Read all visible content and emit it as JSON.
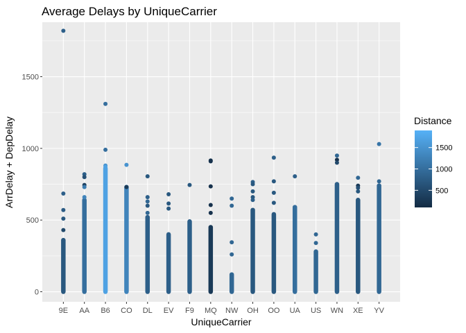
{
  "chart_data": {
    "type": "scatter",
    "title": "Average Delays by UniqueCarrier",
    "xlabel": "UniqueCarrier",
    "ylabel": "ArrDelay + DepDelay",
    "categories": [
      "9E",
      "AA",
      "B6",
      "CO",
      "DL",
      "EV",
      "F9",
      "MQ",
      "NW",
      "OH",
      "OO",
      "UA",
      "US",
      "WN",
      "XE",
      "YV"
    ],
    "ylim": [
      -70,
      1880
    ],
    "yticks": [
      0,
      500,
      1000,
      1500
    ],
    "ytick_labels": [
      "0",
      "500",
      "1000",
      "1500"
    ],
    "grid": true,
    "legend": {
      "title": "Distance",
      "placement": "right",
      "range": [
        100,
        1900
      ],
      "ticks": [
        500,
        1000,
        1500
      ],
      "tick_labels": [
        "500",
        "1000",
        "1500"
      ],
      "color_low": "#132b43",
      "color_high": "#56b1f7"
    },
    "series": [
      {
        "category": "9E",
        "column_max": 360,
        "column_distance": 700,
        "points": [
          [
            1820,
            800
          ],
          [
            685,
            800
          ],
          [
            570,
            750
          ],
          [
            510,
            700
          ],
          [
            430,
            500
          ]
        ]
      },
      {
        "category": "AA",
        "column_max": 640,
        "column_distance": 1000,
        "points": [
          [
            820,
            800
          ],
          [
            800,
            600
          ],
          [
            745,
            400
          ],
          [
            730,
            1200
          ],
          [
            660,
            1300
          ]
        ]
      },
      {
        "category": "B6",
        "column_max": 860,
        "column_distance": 1700,
        "points": [
          [
            1310,
            1000
          ],
          [
            990,
            1000
          ],
          [
            880,
            1500
          ],
          [
            870,
            1700
          ]
        ]
      },
      {
        "category": "CO",
        "column_max": 730,
        "column_distance": 1300,
        "points": [
          [
            885,
            1500
          ],
          [
            730,
            300
          ]
        ]
      },
      {
        "category": "DL",
        "column_max": 520,
        "column_distance": 800,
        "points": [
          [
            805,
            700
          ],
          [
            660,
            800
          ],
          [
            630,
            900
          ],
          [
            600,
            700
          ],
          [
            550,
            900
          ]
        ]
      },
      {
        "category": "EV",
        "column_max": 400,
        "column_distance": 800,
        "points": [
          [
            680,
            700
          ],
          [
            615,
            700
          ],
          [
            580,
            700
          ]
        ]
      },
      {
        "category": "F9",
        "column_max": 490,
        "column_distance": 800,
        "points": [
          [
            745,
            700
          ]
        ]
      },
      {
        "category": "MQ",
        "column_max": 450,
        "column_distance": 300,
        "points": [
          [
            915,
            200
          ],
          [
            910,
            200
          ],
          [
            735,
            200
          ],
          [
            605,
            200
          ],
          [
            550,
            200
          ]
        ]
      },
      {
        "category": "NW",
        "column_max": 120,
        "column_distance": 900,
        "points": [
          [
            650,
            900
          ],
          [
            600,
            900
          ],
          [
            345,
            900
          ],
          [
            260,
            900
          ]
        ]
      },
      {
        "category": "OH",
        "column_max": 570,
        "column_distance": 700,
        "points": [
          [
            765,
            800
          ],
          [
            750,
            700
          ],
          [
            700,
            700
          ],
          [
            660,
            700
          ],
          [
            640,
            800
          ]
        ]
      },
      {
        "category": "OO",
        "column_max": 540,
        "column_distance": 700,
        "points": [
          [
            935,
            800
          ],
          [
            770,
            700
          ],
          [
            690,
            700
          ],
          [
            620,
            700
          ]
        ]
      },
      {
        "category": "UA",
        "column_max": 590,
        "column_distance": 1000,
        "points": [
          [
            805,
            800
          ]
        ]
      },
      {
        "category": "US",
        "column_max": 280,
        "column_distance": 900,
        "points": [
          [
            400,
            900
          ],
          [
            340,
            900
          ]
        ]
      },
      {
        "category": "WN",
        "column_max": 750,
        "column_distance": 800,
        "points": [
          [
            950,
            900
          ],
          [
            920,
            200
          ],
          [
            900,
            500
          ]
        ]
      },
      {
        "category": "XE",
        "column_max": 640,
        "column_distance": 700,
        "points": [
          [
            795,
            900
          ],
          [
            740,
            300
          ],
          [
            725,
            600
          ],
          [
            700,
            700
          ]
        ]
      },
      {
        "category": "YV",
        "column_max": 740,
        "column_distance": 900,
        "points": [
          [
            1030,
            1100
          ],
          [
            770,
            900
          ],
          [
            740,
            900
          ]
        ]
      }
    ]
  }
}
